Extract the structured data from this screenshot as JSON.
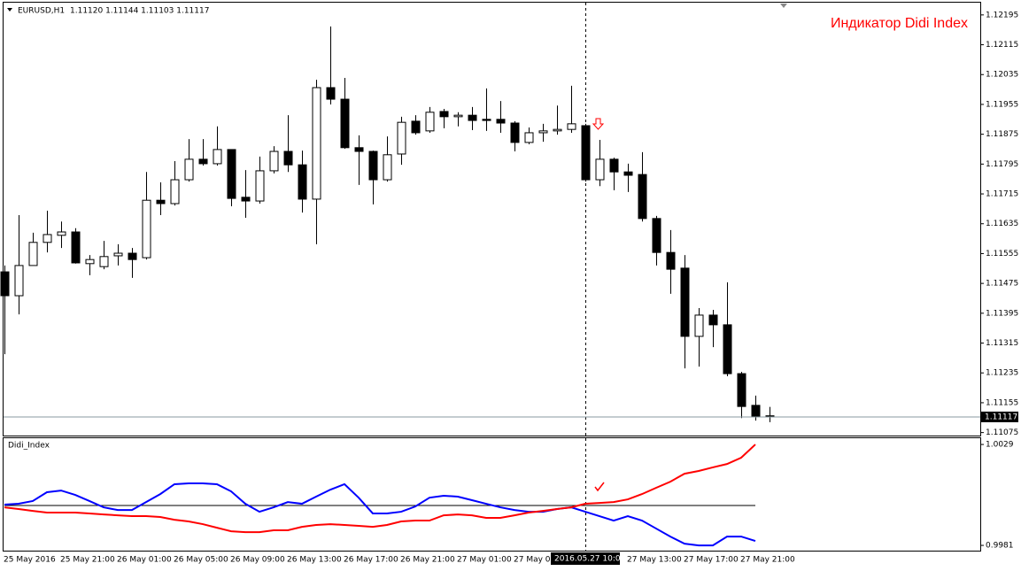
{
  "chart_data": [
    {
      "type": "candlestick",
      "title": "EURUSD,H1",
      "subtitle": "1.11120 1.11144 1.11103 1.11117",
      "annotation": "Индикатор Didi Index",
      "crosshair_label": "2016.05.27 10:00",
      "categories": [
        "25 May 2016",
        null,
        null,
        null,
        "25 May 21:00",
        null,
        null,
        null,
        "26 May 01:00",
        null,
        null,
        null,
        "26 May 05:00",
        null,
        null,
        null,
        "26 May 09:00",
        null,
        null,
        null,
        "26 May 13:00",
        null,
        null,
        null,
        "26 May 17:00",
        null,
        null,
        null,
        "26 May 21:00",
        null,
        null,
        null,
        "27 May 01:00",
        null,
        null,
        null,
        "27 May 0",
        null,
        null,
        null,
        null,
        null,
        null,
        null,
        "27 May 13:00",
        null,
        null,
        null,
        "27 May 17:00",
        null,
        null,
        null,
        "27 May 21:00",
        null,
        null
      ],
      "open": [
        1.11506,
        1.11442,
        1.11523,
        1.11585,
        1.11604,
        1.11613,
        1.11528,
        1.1152,
        1.11549,
        1.11556,
        1.11544,
        1.11698,
        1.11689,
        1.11753,
        1.11808,
        1.11796,
        1.11834,
        1.11706,
        1.11696,
        1.11777,
        1.11829,
        1.11793,
        1.11701,
        1.12,
        1.11969,
        1.11839,
        1.11829,
        1.11753,
        1.11822,
        1.1191,
        1.11884,
        1.11936,
        1.11922,
        1.11926,
        1.11915,
        1.11915,
        1.11905,
        1.11853,
        1.11879,
        1.11884,
        1.11888,
        1.11898,
        1.11753,
        1.11808,
        1.11774,
        1.11767,
        1.11649,
        1.11558,
        1.11516,
        1.11333,
        1.1139,
        1.11364,
        1.11233,
        1.11148,
        1.1112
      ],
      "high": [
        1.11523,
        1.11658,
        1.11611,
        1.1167,
        1.11641,
        1.11623,
        1.11551,
        1.11589,
        1.1158,
        1.1157,
        1.11774,
        1.11746,
        1.11803,
        1.11862,
        1.11862,
        1.11896,
        1.11834,
        1.11779,
        1.11815,
        1.11843,
        1.11926,
        1.11831,
        1.12021,
        1.12164,
        1.12026,
        1.11872,
        1.11831,
        1.11869,
        1.11922,
        1.11926,
        1.11948,
        1.11943,
        1.11934,
        1.11948,
        1.11998,
        1.11964,
        1.1191,
        1.11893,
        1.11903,
        1.11952,
        1.12005,
        1.11903,
        1.1186,
        1.11812,
        1.11796,
        1.11827,
        1.11656,
        1.11618,
        1.11551,
        1.11409,
        1.11404,
        1.11478,
        1.11238,
        1.11174,
        1.11144
      ],
      "low": [
        1.11285,
        1.11392,
        1.11523,
        1.11558,
        1.1157,
        1.11528,
        1.11497,
        1.11513,
        1.11523,
        1.1149,
        1.11539,
        1.11658,
        1.11684,
        1.11748,
        1.11791,
        1.11791,
        1.11682,
        1.11651,
        1.11689,
        1.1177,
        1.11774,
        1.11665,
        1.1158,
        1.11955,
        1.11836,
        1.11739,
        1.11687,
        1.11748,
        1.11793,
        1.11874,
        1.11879,
        1.11891,
        1.11896,
        1.11886,
        1.11884,
        1.11879,
        1.11829,
        1.11848,
        1.11855,
        1.11874,
        1.11879,
        1.11748,
        1.11736,
        1.11725,
        1.1172,
        1.11641,
        1.11523,
        1.11447,
        1.11247,
        1.11252,
        1.11304,
        1.11226,
        1.11114,
        1.11107,
        1.11103
      ],
      "close": [
        1.11442,
        1.11523,
        1.11585,
        1.11606,
        1.11613,
        1.1153,
        1.11539,
        1.11547,
        1.11556,
        1.11539,
        1.11698,
        1.11689,
        1.11753,
        1.11808,
        1.11796,
        1.11834,
        1.11703,
        1.11696,
        1.11777,
        1.11829,
        1.11793,
        1.11701,
        1.12,
        1.11969,
        1.11839,
        1.11829,
        1.11753,
        1.1182,
        1.11907,
        1.11879,
        1.11934,
        1.11922,
        1.11926,
        1.11912,
        1.11912,
        1.11905,
        1.11853,
        1.11879,
        1.11884,
        1.11888,
        1.11903,
        1.11753,
        1.11808,
        1.11774,
        1.11765,
        1.11649,
        1.11558,
        1.11513,
        1.11333,
        1.1139,
        1.11364,
        1.11233,
        1.11145,
        1.11119,
        1.11117
      ],
      "up_color": "#ffffff",
      "down_color": "#000000",
      "ylim": [
        1.11067,
        1.12235
      ],
      "yticks": [
        1.12195,
        1.12115,
        1.12035,
        1.11955,
        1.11875,
        1.11795,
        1.11715,
        1.11635,
        1.11555,
        1.11475,
        1.11395,
        1.11315,
        1.11235,
        1.11155,
        1.11075
      ]
    },
    {
      "type": "line",
      "title": "Didi_Index",
      "level": 1,
      "series": [
        {
          "color": "#0000ff",
          "values": [
            1.00004,
            1.00008,
            1.00021,
            1.00063,
            1.00071,
            1.0005,
            1.00021,
            0.99991,
            0.99978,
            0.99978,
            1.00016,
            1.00054,
            1.00101,
            1.00105,
            1.00105,
            1.00101,
            1.00067,
            1.00008,
            0.9997,
            0.99991,
            1.00016,
            1.00008,
            1.00042,
            1.00075,
            1.00101,
            1.00037,
            0.99962,
            0.99962,
            0.9997,
            0.99995,
            1.00037,
            1.00046,
            1.00042,
            1.00025,
            1.00008,
            0.99991,
            0.99978,
            0.9997,
            0.9997,
            0.99983,
            0.99991,
            0.9997,
            0.99949,
            0.99928,
            0.99949,
            0.99928,
            0.9989,
            0.99852,
            0.99818,
            0.9981,
            0.9981,
            0.99852,
            0.99852,
            0.99831,
            null
          ]
        },
        {
          "color": "#ff0000",
          "values": [
            0.99991,
            0.99983,
            0.99974,
            0.99966,
            0.99966,
            0.99966,
            0.99962,
            0.99957,
            0.99953,
            0.99949,
            0.99949,
            0.99945,
            0.99932,
            0.99924,
            0.99911,
            0.99894,
            0.99877,
            0.99873,
            0.99873,
            0.99882,
            0.99882,
            0.99898,
            0.99907,
            0.99911,
            0.99907,
            0.99903,
            0.99898,
            0.99907,
            0.99924,
            0.99928,
            0.99928,
            0.99953,
            0.99957,
            0.99953,
            0.99941,
            0.99941,
            0.99953,
            0.99966,
            0.99974,
            0.99983,
            0.99991,
            1.00008,
            1.00012,
            1.00016,
            1.00029,
            1.00054,
            1.00084,
            1.00113,
            1.00151,
            1.00164,
            1.00181,
            1.00197,
            1.00227,
            1.0029,
            null
          ]
        }
      ],
      "ylim": [
        0.99785,
        1.00324
      ],
      "yticks": [
        1.0029,
        0.9981
      ]
    }
  ]
}
